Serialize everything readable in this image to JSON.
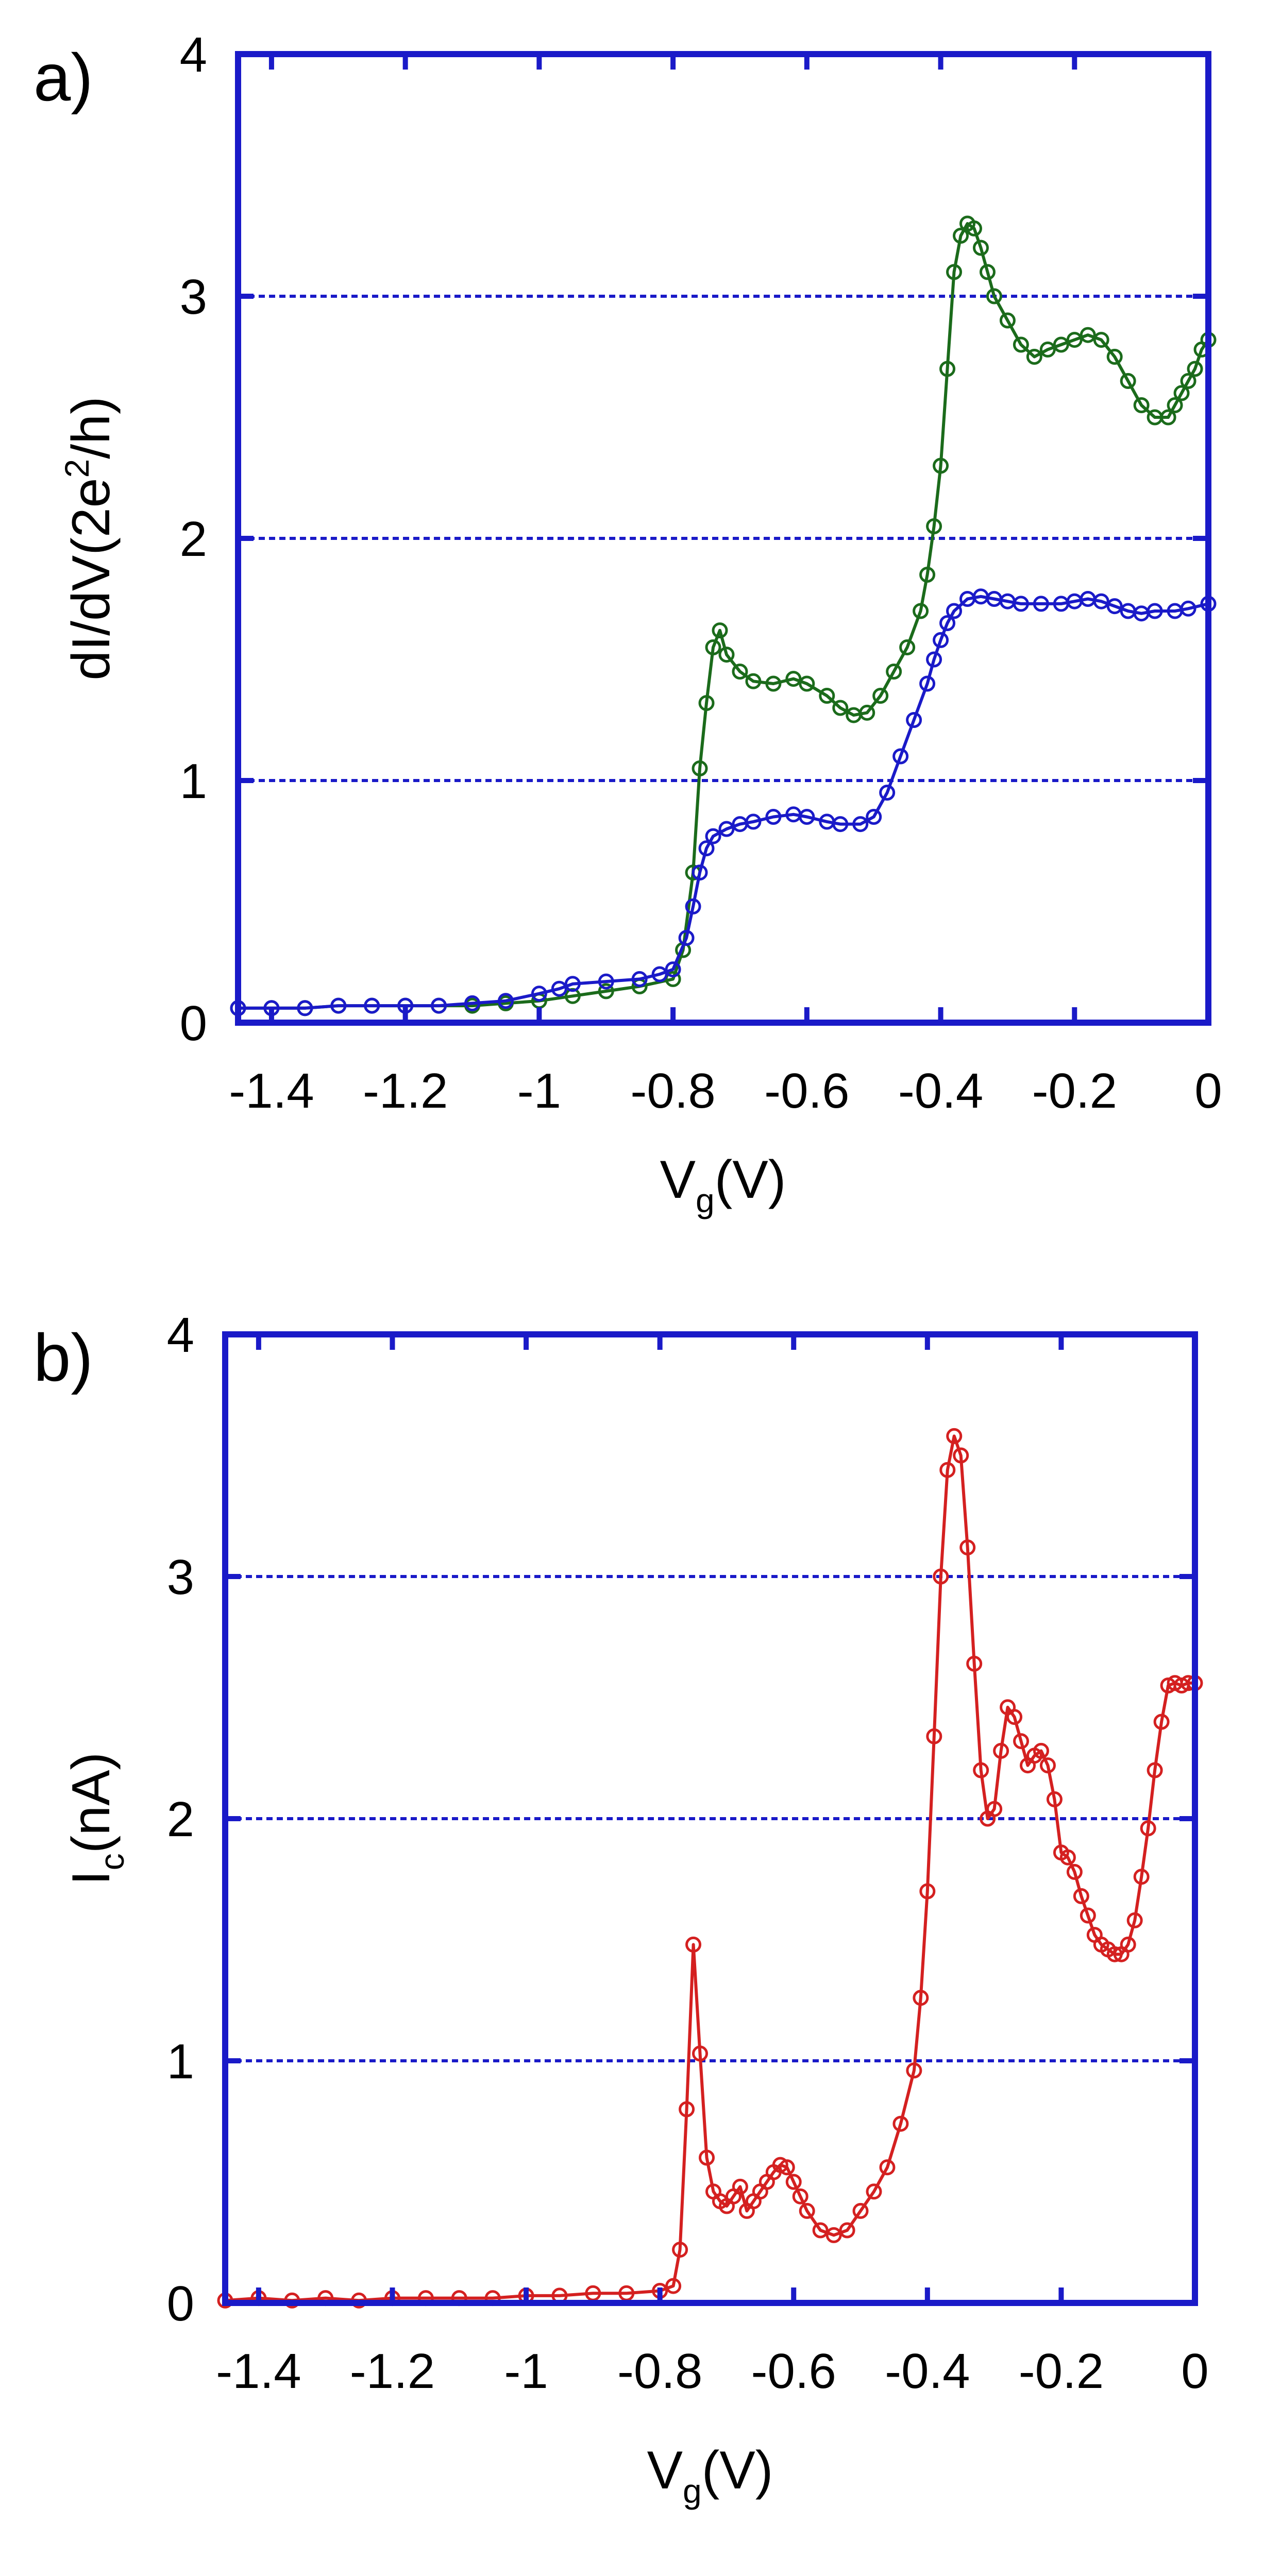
{
  "chart_data": [
    {
      "type": "line",
      "panel_label": "a)",
      "title": "",
      "xlabel": "Vg(V)",
      "xlabel_main": "V",
      "xlabel_sub": "g",
      "xlabel_unit": "(V)",
      "ylabel": "dI/dV(2e²/h)",
      "ylabel_pre": "dI/dV(2e",
      "ylabel_sup": "2",
      "ylabel_post": "/h)",
      "xlim": [
        -1.45,
        0
      ],
      "ylim": [
        0,
        4
      ],
      "x_ticks": [
        -1.4,
        -1.2,
        -1.0,
        -0.8,
        -0.6,
        -0.4,
        -0.2,
        0
      ],
      "x_tick_labels": [
        "-1.4",
        "-1.2",
        "-1",
        "-0.8",
        "-0.6",
        "-0.4",
        "-0.2",
        "0"
      ],
      "y_ticks": [
        0,
        1,
        2,
        3,
        4
      ],
      "y_tick_labels": [
        "0",
        "1",
        "2",
        "3",
        "4"
      ],
      "grid": "horizontal dashed",
      "series": [
        {
          "name": "green",
          "color": "#1b6b1b",
          "x": [
            -1.45,
            -1.4,
            -1.35,
            -1.3,
            -1.25,
            -1.2,
            -1.15,
            -1.1,
            -1.05,
            -1.0,
            -0.95,
            -0.9,
            -0.85,
            -0.8,
            -0.785,
            -0.77,
            -0.76,
            -0.75,
            -0.74,
            -0.73,
            -0.72,
            -0.7,
            -0.68,
            -0.65,
            -0.62,
            -0.6,
            -0.57,
            -0.55,
            -0.53,
            -0.51,
            -0.49,
            -0.47,
            -0.45,
            -0.43,
            -0.42,
            -0.41,
            -0.4,
            -0.39,
            -0.38,
            -0.37,
            -0.36,
            -0.35,
            -0.34,
            -0.33,
            -0.32,
            -0.3,
            -0.28,
            -0.26,
            -0.24,
            -0.22,
            -0.2,
            -0.18,
            -0.16,
            -0.14,
            -0.12,
            -0.1,
            -0.08,
            -0.06,
            -0.05,
            -0.04,
            -0.03,
            -0.02,
            -0.01,
            0
          ],
          "y": [
            0.06,
            0.06,
            0.06,
            0.07,
            0.07,
            0.07,
            0.07,
            0.07,
            0.08,
            0.09,
            0.11,
            0.13,
            0.15,
            0.18,
            0.3,
            0.62,
            1.05,
            1.32,
            1.55,
            1.62,
            1.52,
            1.45,
            1.41,
            1.4,
            1.42,
            1.4,
            1.35,
            1.3,
            1.27,
            1.28,
            1.35,
            1.45,
            1.55,
            1.7,
            1.85,
            2.05,
            2.3,
            2.7,
            3.1,
            3.25,
            3.3,
            3.28,
            3.2,
            3.1,
            3.0,
            2.9,
            2.8,
            2.75,
            2.78,
            2.8,
            2.82,
            2.84,
            2.82,
            2.75,
            2.65,
            2.55,
            2.5,
            2.5,
            2.55,
            2.6,
            2.65,
            2.7,
            2.78,
            2.82
          ]
        },
        {
          "name": "blue",
          "color": "#1a1ac8",
          "x": [
            -1.45,
            -1.4,
            -1.35,
            -1.3,
            -1.25,
            -1.2,
            -1.15,
            -1.1,
            -1.05,
            -1.0,
            -0.97,
            -0.95,
            -0.9,
            -0.85,
            -0.82,
            -0.8,
            -0.78,
            -0.77,
            -0.76,
            -0.75,
            -0.74,
            -0.72,
            -0.7,
            -0.68,
            -0.65,
            -0.62,
            -0.6,
            -0.57,
            -0.55,
            -0.52,
            -0.5,
            -0.48,
            -0.46,
            -0.44,
            -0.42,
            -0.41,
            -0.4,
            -0.39,
            -0.38,
            -0.36,
            -0.34,
            -0.32,
            -0.3,
            -0.28,
            -0.25,
            -0.22,
            -0.2,
            -0.18,
            -0.16,
            -0.14,
            -0.12,
            -0.1,
            -0.08,
            -0.05,
            -0.03,
            0
          ],
          "y": [
            0.06,
            0.06,
            0.06,
            0.07,
            0.07,
            0.07,
            0.07,
            0.08,
            0.09,
            0.12,
            0.14,
            0.16,
            0.17,
            0.18,
            0.2,
            0.22,
            0.35,
            0.48,
            0.62,
            0.72,
            0.77,
            0.8,
            0.82,
            0.83,
            0.85,
            0.86,
            0.85,
            0.83,
            0.82,
            0.82,
            0.85,
            0.95,
            1.1,
            1.25,
            1.4,
            1.5,
            1.58,
            1.65,
            1.7,
            1.75,
            1.76,
            1.75,
            1.74,
            1.73,
            1.73,
            1.73,
            1.74,
            1.75,
            1.74,
            1.72,
            1.7,
            1.69,
            1.7,
            1.7,
            1.71,
            1.73
          ]
        }
      ]
    },
    {
      "type": "line",
      "panel_label": "b)",
      "title": "",
      "xlabel": "Vg(V)",
      "xlabel_main": "V",
      "xlabel_sub": "g",
      "xlabel_unit": "(V)",
      "ylabel": "Ic(nA)",
      "ylabel_main": "I",
      "ylabel_sub": "c",
      "ylabel_unit": "(nA)",
      "xlim": [
        -1.45,
        0
      ],
      "ylim": [
        0,
        4
      ],
      "x_ticks": [
        -1.4,
        -1.2,
        -1.0,
        -0.8,
        -0.6,
        -0.4,
        -0.2,
        0
      ],
      "x_tick_labels": [
        "-1.4",
        "-1.2",
        "-1",
        "-0.8",
        "-0.6",
        "-0.4",
        "-0.2",
        "0"
      ],
      "y_ticks": [
        0,
        1,
        2,
        3,
        4
      ],
      "y_tick_labels": [
        "0",
        "1",
        "2",
        "3",
        "4"
      ],
      "grid": "horizontal dashed",
      "series": [
        {
          "name": "red",
          "color": "#d42020",
          "x": [
            -1.45,
            -1.4,
            -1.35,
            -1.3,
            -1.25,
            -1.2,
            -1.15,
            -1.1,
            -1.05,
            -1.0,
            -0.95,
            -0.9,
            -0.85,
            -0.8,
            -0.78,
            -0.77,
            -0.76,
            -0.75,
            -0.74,
            -0.73,
            -0.72,
            -0.71,
            -0.7,
            -0.69,
            -0.68,
            -0.67,
            -0.66,
            -0.65,
            -0.64,
            -0.63,
            -0.62,
            -0.61,
            -0.6,
            -0.59,
            -0.58,
            -0.56,
            -0.54,
            -0.52,
            -0.5,
            -0.48,
            -0.46,
            -0.44,
            -0.42,
            -0.41,
            -0.4,
            -0.39,
            -0.38,
            -0.37,
            -0.36,
            -0.35,
            -0.34,
            -0.33,
            -0.32,
            -0.31,
            -0.3,
            -0.29,
            -0.28,
            -0.27,
            -0.26,
            -0.25,
            -0.24,
            -0.23,
            -0.22,
            -0.21,
            -0.2,
            -0.19,
            -0.18,
            -0.17,
            -0.16,
            -0.15,
            -0.14,
            -0.13,
            -0.12,
            -0.11,
            -0.1,
            -0.09,
            -0.08,
            -0.07,
            -0.06,
            -0.05,
            -0.04,
            -0.03,
            -0.02,
            -0.01,
            0
          ],
          "y": [
            0.01,
            0.02,
            0.01,
            0.02,
            0.01,
            0.02,
            0.02,
            0.02,
            0.02,
            0.03,
            0.03,
            0.04,
            0.04,
            0.05,
            0.07,
            0.22,
            0.8,
            1.48,
            1.03,
            0.6,
            0.46,
            0.42,
            0.4,
            0.44,
            0.48,
            0.38,
            0.42,
            0.46,
            0.5,
            0.54,
            0.57,
            0.56,
            0.5,
            0.44,
            0.38,
            0.3,
            0.28,
            0.3,
            0.38,
            0.46,
            0.56,
            0.74,
            0.96,
            1.26,
            1.7,
            2.34,
            3.0,
            3.44,
            3.58,
            3.5,
            3.12,
            2.64,
            2.2,
            2.0,
            2.04,
            2.28,
            2.46,
            2.42,
            2.32,
            2.22,
            2.26,
            2.28,
            2.22,
            2.08,
            1.86,
            1.84,
            1.78,
            1.68,
            1.6,
            1.52,
            1.48,
            1.46,
            1.44,
            1.44,
            1.48,
            1.58,
            1.76,
            1.96,
            2.2,
            2.4,
            2.55,
            2.56,
            2.55,
            2.56,
            2.56
          ]
        }
      ]
    }
  ]
}
